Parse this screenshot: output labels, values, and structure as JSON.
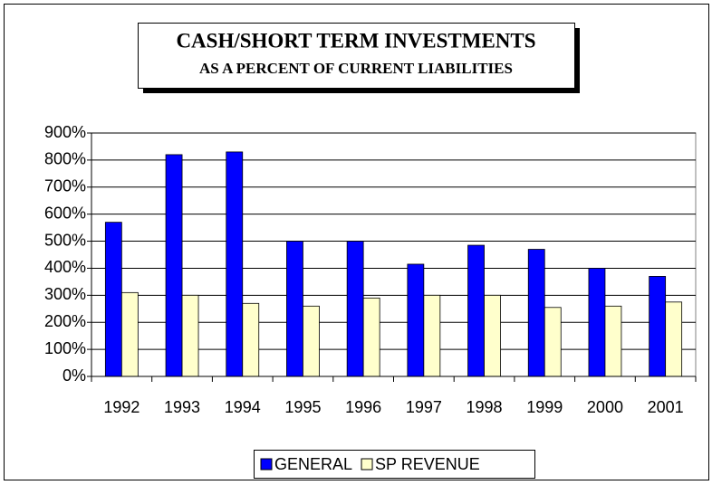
{
  "chart_data": {
    "type": "bar",
    "title": "CASH/SHORT TERM INVESTMENTS",
    "subtitle": "AS A PERCENT OF CURRENT LIABILITIES",
    "categories": [
      "1992",
      "1993",
      "1994",
      "1995",
      "1996",
      "1997",
      "1998",
      "1999",
      "2000",
      "2001"
    ],
    "series": [
      {
        "name": "GENERAL",
        "color": "#0000ff",
        "values": [
          570,
          820,
          830,
          500,
          500,
          415,
          485,
          470,
          400,
          370
        ]
      },
      {
        "name": "SP REVENUE",
        "color": "#ffffcc",
        "values": [
          310,
          300,
          270,
          260,
          290,
          300,
          300,
          255,
          260,
          275
        ]
      }
    ],
    "ylim": [
      0,
      900
    ],
    "yticks": [
      {
        "value": 0,
        "label": "0%"
      },
      {
        "value": 100,
        "label": "100%"
      },
      {
        "value": 200,
        "label": "200%"
      },
      {
        "value": 300,
        "label": "300%"
      },
      {
        "value": 400,
        "label": "400%"
      },
      {
        "value": 500,
        "label": "500%"
      },
      {
        "value": 600,
        "label": "600%"
      },
      {
        "value": 700,
        "label": "700%"
      },
      {
        "value": 800,
        "label": "800%"
      },
      {
        "value": 900,
        "label": "900%"
      }
    ],
    "grid": true,
    "legend": "bottom"
  }
}
